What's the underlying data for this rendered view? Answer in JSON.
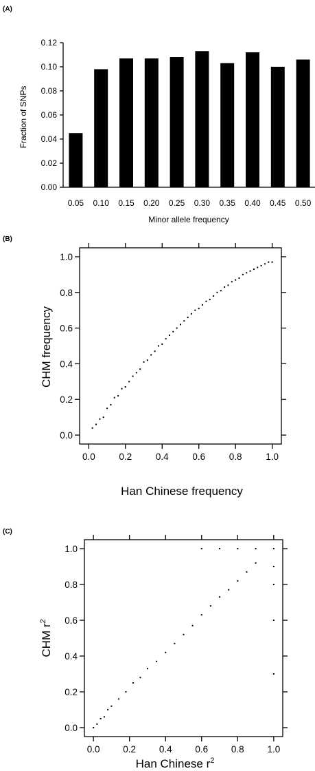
{
  "chart_data": [
    {
      "panel_label": "(A)",
      "type": "bar",
      "categories": [
        "0.05",
        "0.10",
        "0.15",
        "0.20",
        "0.25",
        "0.30",
        "0.35",
        "0.40",
        "0.45",
        "0.50"
      ],
      "values": [
        0.045,
        0.098,
        0.107,
        0.107,
        0.108,
        0.113,
        0.103,
        0.112,
        0.1,
        0.106
      ],
      "xlabel": "Minor allele frequency",
      "ylabel": "Fraction of SNPs",
      "ylim": [
        0,
        0.12
      ],
      "yticks": [
        "0.00",
        "0.02",
        "0.04",
        "0.06",
        "0.08",
        "0.10",
        "0.12"
      ],
      "bar_color": "#000000"
    },
    {
      "panel_label": "(B)",
      "type": "scatter",
      "xlabel": "Han Chinese frequency",
      "ylabel": "CHM frequency",
      "xlim": [
        -0.05,
        1.05
      ],
      "ylim": [
        -0.05,
        1.05
      ],
      "xticks": [
        "0.0",
        "0.2",
        "0.4",
        "0.6",
        "0.8",
        "1.0"
      ],
      "yticks": [
        "0.0",
        "0.2",
        "0.4",
        "0.6",
        "0.8",
        "1.0"
      ],
      "point_color": "#000000",
      "points": [
        [
          0.02,
          0.04
        ],
        [
          0.04,
          0.06
        ],
        [
          0.06,
          0.09
        ],
        [
          0.08,
          0.1
        ],
        [
          0.1,
          0.15
        ],
        [
          0.12,
          0.17
        ],
        [
          0.14,
          0.21
        ],
        [
          0.16,
          0.22
        ],
        [
          0.18,
          0.26
        ],
        [
          0.2,
          0.27
        ],
        [
          0.22,
          0.3
        ],
        [
          0.24,
          0.33
        ],
        [
          0.26,
          0.35
        ],
        [
          0.28,
          0.37
        ],
        [
          0.3,
          0.41
        ],
        [
          0.32,
          0.42
        ],
        [
          0.34,
          0.45
        ],
        [
          0.36,
          0.47
        ],
        [
          0.38,
          0.5
        ],
        [
          0.4,
          0.51
        ],
        [
          0.42,
          0.54
        ],
        [
          0.44,
          0.56
        ],
        [
          0.46,
          0.58
        ],
        [
          0.48,
          0.6
        ],
        [
          0.5,
          0.62
        ],
        [
          0.52,
          0.64
        ],
        [
          0.54,
          0.66
        ],
        [
          0.56,
          0.68
        ],
        [
          0.58,
          0.7
        ],
        [
          0.6,
          0.71
        ],
        [
          0.62,
          0.73
        ],
        [
          0.64,
          0.75
        ],
        [
          0.66,
          0.76
        ],
        [
          0.68,
          0.78
        ],
        [
          0.7,
          0.8
        ],
        [
          0.72,
          0.81
        ],
        [
          0.74,
          0.83
        ],
        [
          0.76,
          0.84
        ],
        [
          0.78,
          0.86
        ],
        [
          0.8,
          0.87
        ],
        [
          0.82,
          0.88
        ],
        [
          0.84,
          0.9
        ],
        [
          0.86,
          0.91
        ],
        [
          0.88,
          0.92
        ],
        [
          0.9,
          0.93
        ],
        [
          0.92,
          0.94
        ],
        [
          0.94,
          0.95
        ],
        [
          0.96,
          0.96
        ],
        [
          0.98,
          0.97
        ],
        [
          1.0,
          0.97
        ]
      ]
    },
    {
      "panel_label": "(C)",
      "type": "scatter",
      "xlabel": "Han Chinese r",
      "xlabel_sup": "2",
      "ylabel": "CHM r",
      "ylabel_sup": "2",
      "xlim": [
        -0.05,
        1.05
      ],
      "ylim": [
        -0.05,
        1.05
      ],
      "xticks": [
        "0.0",
        "0.2",
        "0.4",
        "0.6",
        "0.8",
        "1.0"
      ],
      "yticks": [
        "0.0",
        "0.2",
        "0.4",
        "0.6",
        "0.8",
        "1.0"
      ],
      "point_color": "#000000",
      "points": [
        [
          0.0,
          0.0
        ],
        [
          0.02,
          0.02
        ],
        [
          0.04,
          0.05
        ],
        [
          0.06,
          0.06
        ],
        [
          0.08,
          0.1
        ],
        [
          0.1,
          0.12
        ],
        [
          0.14,
          0.16
        ],
        [
          0.18,
          0.2
        ],
        [
          0.22,
          0.25
        ],
        [
          0.26,
          0.28
        ],
        [
          0.3,
          0.33
        ],
        [
          0.35,
          0.37
        ],
        [
          0.4,
          0.42
        ],
        [
          0.45,
          0.47
        ],
        [
          0.5,
          0.52
        ],
        [
          0.55,
          0.57
        ],
        [
          0.6,
          0.63
        ],
        [
          0.65,
          0.68
        ],
        [
          0.7,
          0.73
        ],
        [
          0.75,
          0.77
        ],
        [
          0.8,
          0.82
        ],
        [
          0.85,
          0.87
        ],
        [
          0.9,
          0.92
        ],
        [
          0.6,
          1.0
        ],
        [
          0.7,
          1.0
        ],
        [
          0.8,
          1.0
        ],
        [
          0.9,
          1.0
        ],
        [
          1.0,
          1.0
        ],
        [
          1.0,
          0.9
        ],
        [
          1.0,
          0.8
        ],
        [
          1.0,
          0.6
        ],
        [
          1.0,
          0.3
        ]
      ]
    }
  ]
}
